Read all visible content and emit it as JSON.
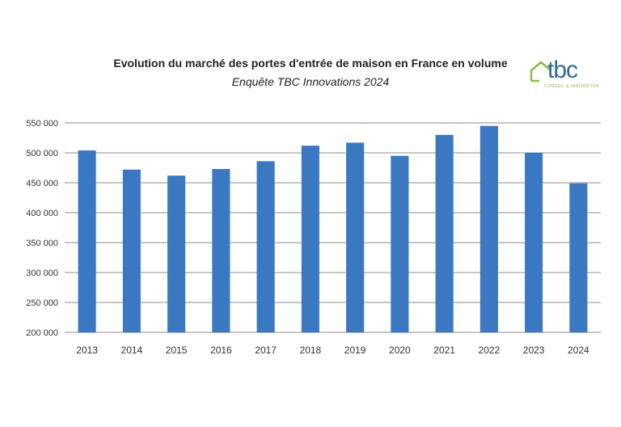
{
  "header": {
    "title": "Evolution du marché des portes d'entrée de maison en France en volume",
    "subtitle": "Enquête TBC Innovations 2024"
  },
  "logo": {
    "text": "tbc",
    "tagline": "CONSEIL & INNOVATION",
    "text_color": "#2e6b8f",
    "accent_color": "#8bbf3f"
  },
  "chart_data": {
    "type": "bar",
    "title": "Evolution du marché des portes d'entrée de maison en France en volume",
    "subtitle": "Enquête TBC Innovations 2024",
    "xlabel": "",
    "ylabel": "",
    "categories": [
      "2013",
      "2014",
      "2015",
      "2016",
      "2017",
      "2018",
      "2019",
      "2020",
      "2021",
      "2022",
      "2023",
      "2024"
    ],
    "values": [
      504000,
      472000,
      462000,
      473000,
      486000,
      512000,
      517000,
      495000,
      530000,
      545000,
      500000,
      449000
    ],
    "ylim": [
      200000,
      550000
    ],
    "yticks": [
      200000,
      250000,
      300000,
      350000,
      400000,
      450000,
      500000,
      550000
    ],
    "ytick_labels": [
      "200 000",
      "250 000",
      "300 000",
      "350 000",
      "400 000",
      "450 000",
      "500 000",
      "550 000"
    ],
    "bar_color": "#3a78c2",
    "grid": true,
    "legend": "none"
  }
}
